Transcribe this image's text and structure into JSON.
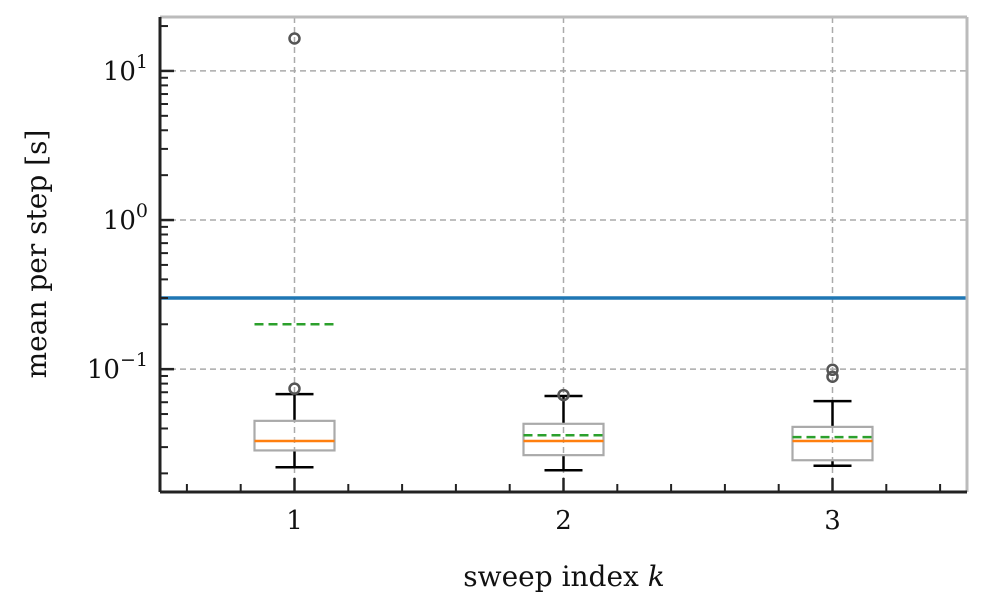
{
  "chart_data": {
    "type": "box",
    "xlabel": "sweep index ",
    "xlabel_var": "k",
    "ylabel": "mean per step [s]",
    "yscale": "log",
    "ylim": [
      0.015,
      23
    ],
    "xlim": [
      0.5,
      3.5
    ],
    "grid": true,
    "x_ticks": [
      {
        "value": 1,
        "label": "1"
      },
      {
        "value": 2,
        "label": "2"
      },
      {
        "value": 3,
        "label": "3"
      }
    ],
    "y_ticks": [
      {
        "value": 0.1,
        "base": "10",
        "exp": "−1"
      },
      {
        "value": 1,
        "base": "10",
        "exp": "0"
      },
      {
        "value": 10,
        "base": "10",
        "exp": "1"
      }
    ],
    "reference_line": {
      "value": 0.3,
      "color": "#1f77b4"
    },
    "boxes": [
      {
        "category": "1",
        "whisker_low": 0.022,
        "q1": 0.0285,
        "median": 0.033,
        "q3": 0.045,
        "whisker_high": 0.068,
        "mean": 0.2,
        "fliers": [
          0.074,
          16.5
        ]
      },
      {
        "category": "2",
        "whisker_low": 0.021,
        "q1": 0.0265,
        "median": 0.033,
        "q3": 0.043,
        "whisker_high": 0.066,
        "mean": 0.036,
        "fliers": [
          0.067
        ]
      },
      {
        "category": "3",
        "whisker_low": 0.0225,
        "q1": 0.0245,
        "median": 0.033,
        "q3": 0.041,
        "whisker_high": 0.061,
        "mean": 0.035,
        "fliers": [
          0.089,
          0.099
        ]
      }
    ],
    "colors": {
      "box": "#aaaaaa",
      "median": "#ff7f0e",
      "mean": "#2ca02c",
      "whisker": "#000000",
      "flier": "#555555",
      "grid": "#aaaaaa",
      "axis": "#222222"
    }
  }
}
